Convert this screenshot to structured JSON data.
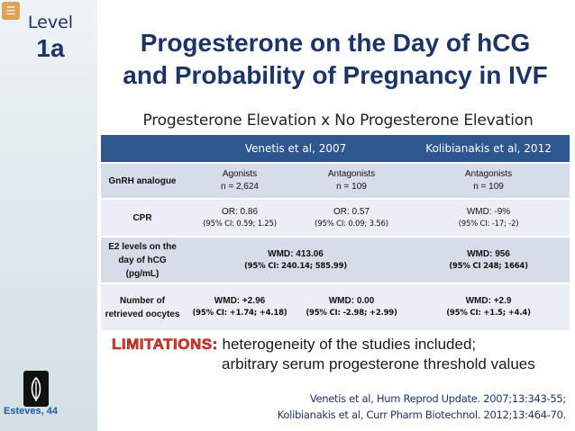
{
  "sidebar": {
    "level_label": "Level",
    "level_value": "1a",
    "author": "Esteves, 44"
  },
  "title": {
    "line1": "Progesterone on the Day of hCG",
    "line2": "and Probability of Pregnancy in IVF"
  },
  "subtitle": "Progesterone Elevation x No Progesterone Elevation",
  "table": {
    "headers": [
      "Venetis et al, 2007",
      "Kolibianakis et al, 2012"
    ],
    "rows": {
      "gnrh": {
        "label": "GnRH analogue",
        "agonists": {
          "main": "Agonists",
          "sub": "n = 2,624"
        },
        "antagonists": {
          "main": "Antagonists",
          "sub": "n = 109"
        },
        "kolibianakis": {
          "main": "Antagonists",
          "sub": "n = 109"
        }
      },
      "cpr": {
        "label": "CPR",
        "agonists": {
          "main": "OR: 0.86",
          "sub": "(95% CI: 0.59; 1.25)"
        },
        "antagonists": {
          "main": "OR: 0.57",
          "sub": "(95% CI: 0.09; 3.56)"
        },
        "kolibianakis": {
          "main": "WMD: -9%",
          "sub": "(95% CI: -17; -2)"
        }
      },
      "e2": {
        "label": "E2 levels on the day of hCG (pg/mL)",
        "venetis": {
          "main": "WMD: 413.06",
          "sub": "(95% CI: 240.14; 585.99)"
        },
        "kolibianakis": {
          "main": "WMD: 956",
          "sub": "(95% CI 248; 1664)"
        }
      },
      "oocytes": {
        "label": "Number of retrieved oocytes",
        "agonists": {
          "main": "WMD: +2.96",
          "sub": "(95% CI: +1.74; +4.18)"
        },
        "antagonists": {
          "main": "WMD: 0.00",
          "sub": "(95% CI: -2.98; +2.99)"
        },
        "kolibianakis": {
          "main": "WMD: +2.9",
          "sub": "(95% CI: +1.5; +4.4)"
        }
      }
    }
  },
  "limitations": {
    "label": "LIMITATIONS:",
    "line1": "heterogeneity of the studies included;",
    "line2": "arbitrary serum progesterone threshold values"
  },
  "references": [
    "Venetis et al, Hum Reprod Update. 2007;13:343-55;",
    "Kolibianakis et al, Curr Pharm Biotechnol. 2012;13:464-70."
  ],
  "colors": {
    "header_bg": "#2e568f",
    "row_dark": "#d6dde9",
    "row_light": "#ebeff5",
    "title": "#1d3566",
    "limitations": "#e23b2a"
  },
  "icons": [
    "app-corner-icon",
    "logo-icon"
  ]
}
